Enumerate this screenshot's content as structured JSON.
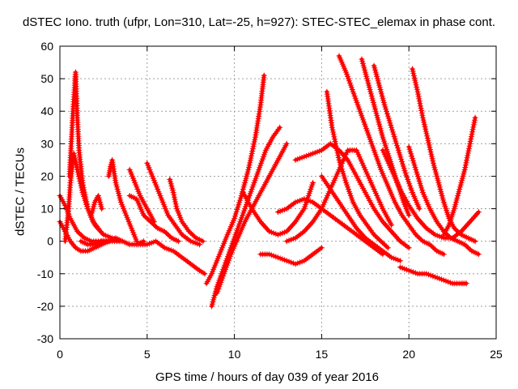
{
  "chart_data": {
    "type": "scatter",
    "title": "dSTEC Iono. truth (ufpr, Lon=310, Lat=-25, h=927): STEC-STEC_elemax in phase cont.",
    "xlabel": "GPS time / hours of day 039 of year 2016",
    "ylabel": "dSTEC  / TECUs",
    "xlim": [
      0,
      25
    ],
    "ylim": [
      -30,
      60
    ],
    "xticks": [
      "0",
      "5",
      "10",
      "15",
      "20",
      "25"
    ],
    "yticks": [
      "-30",
      "-20",
      "-10",
      "0",
      "10",
      "20",
      "30",
      "40",
      "50",
      "60"
    ],
    "grid": true,
    "marker": "+",
    "color": "#ff0000",
    "series": [
      {
        "x": [
          0.0,
          0.3,
          0.6,
          1.0,
          1.4,
          1.8,
          2.2,
          2.6,
          3.0,
          3.4
        ],
        "y": [
          14,
          11,
          7,
          3,
          1,
          0,
          0,
          0,
          0,
          0
        ]
      },
      {
        "x": [
          0.0,
          0.3,
          0.6,
          0.9,
          1.2,
          1.6,
          2.0,
          2.4,
          2.8
        ],
        "y": [
          6,
          3,
          0,
          -2,
          -3,
          -3,
          -2,
          -1,
          0
        ]
      },
      {
        "x": [
          0.3,
          0.4,
          0.5,
          0.6,
          0.8,
          1.0,
          1.3,
          1.6,
          1.9,
          2.2
        ],
        "y": [
          0,
          5,
          10,
          18,
          27,
          22,
          15,
          10,
          6,
          4
        ]
      },
      {
        "x": [
          0.55,
          0.65,
          0.75,
          0.85,
          0.9,
          1.0,
          1.1,
          1.3,
          1.6,
          2.0,
          2.5,
          3.0,
          3.5
        ],
        "y": [
          20,
          30,
          40,
          48,
          52,
          38,
          28,
          18,
          10,
          5,
          2,
          1,
          0
        ]
      },
      {
        "x": [
          1.2,
          1.6,
          2.0,
          2.4,
          2.8,
          3.2,
          3.6,
          4.0,
          4.4,
          4.8
        ],
        "y": [
          0,
          -1,
          -1,
          0,
          0,
          1,
          0,
          -1,
          -1,
          0
        ]
      },
      {
        "x": [
          1.8,
          2.0,
          2.2,
          2.4
        ],
        "y": [
          8,
          12,
          14,
          10
        ]
      },
      {
        "x": [
          2.8,
          2.9,
          3.0,
          3.2,
          3.5,
          3.8,
          4.1,
          4.4
        ],
        "y": [
          20,
          23,
          25,
          18,
          12,
          8,
          4,
          0
        ]
      },
      {
        "x": [
          4.0,
          4.3,
          4.6,
          5.0,
          5.4
        ],
        "y": [
          22,
          18,
          14,
          10,
          6
        ]
      },
      {
        "x": [
          4.0,
          4.4,
          4.8,
          5.2,
          5.6,
          6.0,
          6.4,
          6.8
        ],
        "y": [
          14,
          13,
          8,
          6,
          4,
          3,
          1,
          0
        ]
      },
      {
        "x": [
          5.0,
          5.3,
          5.6,
          5.9,
          6.2,
          6.6,
          7.0,
          7.5,
          8.0
        ],
        "y": [
          24,
          20,
          16,
          12,
          8,
          5,
          2,
          0,
          -1
        ]
      },
      {
        "x": [
          6.3,
          6.5,
          6.7,
          7.0,
          7.4,
          7.8,
          8.2
        ],
        "y": [
          19,
          15,
          10,
          6,
          3,
          1,
          0
        ]
      },
      {
        "x": [
          4.5,
          5.0,
          5.5,
          6.0,
          6.5,
          7.0,
          7.5,
          8.0,
          8.3
        ],
        "y": [
          -1,
          -1,
          0,
          -2,
          -3,
          -5,
          -7,
          -9,
          -10
        ]
      },
      {
        "x": [
          8.4,
          8.7,
          9.0,
          9.3,
          9.6,
          10.0,
          10.4,
          10.8,
          11.2,
          11.5,
          11.7
        ],
        "y": [
          -13,
          -10,
          -6,
          -2,
          2,
          7,
          14,
          22,
          32,
          42,
          51
        ]
      },
      {
        "x": [
          8.7,
          9.0,
          9.4,
          9.8,
          10.2,
          10.6,
          11.0,
          11.4,
          11.8,
          12.2,
          12.6
        ],
        "y": [
          -20,
          -14,
          -8,
          -2,
          4,
          10,
          16,
          22,
          28,
          32,
          35
        ]
      },
      {
        "x": [
          9.0,
          9.4,
          9.8,
          10.2,
          10.6,
          11.0,
          11.4,
          11.8,
          12.2,
          12.6,
          13.0
        ],
        "y": [
          -16,
          -10,
          -4,
          1,
          6,
          10,
          14,
          18,
          22,
          26,
          30
        ]
      },
      {
        "x": [
          10.5,
          11.0,
          11.5,
          12.0,
          12.5,
          13.0,
          13.5,
          14.0,
          14.5
        ],
        "y": [
          15,
          10,
          6,
          3,
          2,
          3,
          6,
          10,
          18
        ]
      },
      {
        "x": [
          11.5,
          12.0,
          12.5,
          13.0,
          13.5,
          14.0,
          14.5,
          15.0
        ],
        "y": [
          -4,
          -4,
          -5,
          -6,
          -7,
          -6,
          -4,
          -2
        ]
      },
      {
        "x": [
          13.5,
          14.0,
          14.5,
          15.0,
          15.5,
          16.0,
          16.5,
          17.0,
          17.5,
          18.0,
          18.5,
          19.0,
          19.5,
          20.0
        ],
        "y": [
          25,
          26,
          27,
          28,
          30,
          28,
          25,
          20,
          15,
          10,
          6,
          3,
          0,
          -2
        ]
      },
      {
        "x": [
          15.3,
          15.6,
          16.0,
          16.4,
          16.8,
          17.2,
          17.6,
          18.0,
          18.4,
          18.8
        ],
        "y": [
          46,
          35,
          25,
          18,
          12,
          8,
          5,
          2,
          0,
          -2
        ]
      },
      {
        "x": [
          16.0,
          16.4,
          16.8,
          17.2,
          17.6,
          18.0,
          18.4,
          18.8,
          19.2,
          19.6,
          20.0,
          20.4,
          20.8,
          21.2,
          21.6,
          22.0
        ],
        "y": [
          57,
          52,
          46,
          40,
          34,
          28,
          22,
          17,
          12,
          8,
          5,
          2,
          0,
          -1,
          -3,
          -4
        ]
      },
      {
        "x": [
          17.3,
          17.6,
          17.9,
          18.2,
          18.5,
          18.8,
          19.1,
          19.4,
          19.7,
          20.0
        ],
        "y": [
          56,
          50,
          44,
          38,
          32,
          27,
          22,
          17,
          12,
          8
        ]
      },
      {
        "x": [
          18.0,
          18.3,
          18.6,
          19.0,
          19.4,
          19.8,
          20.2,
          20.6
        ],
        "y": [
          54,
          48,
          42,
          35,
          28,
          21,
          15,
          10
        ]
      },
      {
        "x": [
          20.2,
          20.5,
          20.8,
          21.1,
          21.4,
          21.7,
          22.0,
          22.3,
          22.6,
          23.0,
          23.4,
          23.8
        ],
        "y": [
          53,
          46,
          38,
          31,
          24,
          18,
          12,
          7,
          4,
          2,
          1,
          0
        ]
      },
      {
        "x": [
          20.0,
          20.4,
          20.8,
          21.2,
          21.6,
          22.0,
          22.4,
          22.8,
          23.2,
          23.6,
          24.0
        ],
        "y": [
          29,
          22,
          15,
          10,
          6,
          3,
          1,
          0,
          -1,
          -3,
          -4
        ]
      },
      {
        "x": [
          22.0,
          22.3,
          22.6,
          22.9,
          23.2,
          23.5,
          23.8
        ],
        "y": [
          2,
          5,
          10,
          16,
          22,
          30,
          38
        ]
      },
      {
        "x": [
          19.5,
          20.0,
          20.5,
          21.0,
          21.5,
          22.0,
          22.5,
          23.0,
          23.3
        ],
        "y": [
          -8,
          -9,
          -10,
          -10,
          -11,
          -12,
          -13,
          -13,
          -13
        ]
      },
      {
        "x": [
          12.5,
          13.0,
          13.5,
          14.0,
          14.5,
          15.0,
          15.5,
          16.0,
          16.5,
          17.0,
          17.5,
          18.0,
          18.5
        ],
        "y": [
          9,
          10,
          12,
          13,
          12,
          10,
          8,
          6,
          4,
          2,
          0,
          -2,
          -4
        ]
      },
      {
        "x": [
          13.0,
          13.5,
          14.0,
          14.5,
          15.0,
          15.5,
          16.0,
          16.5,
          17.0,
          17.5,
          18.0,
          18.5,
          19.0
        ],
        "y": [
          0,
          1,
          3,
          6,
          10,
          16,
          22,
          28,
          28,
          22,
          16,
          10,
          5
        ]
      },
      {
        "x": [
          18.5,
          19.0,
          19.5,
          20.0,
          20.5,
          21.0,
          21.5,
          22.0,
          22.5,
          23.0,
          23.5,
          24.0
        ],
        "y": [
          28,
          22,
          16,
          11,
          7,
          4,
          2,
          1,
          1,
          3,
          6,
          9
        ]
      },
      {
        "x": [
          15.0,
          15.5,
          16.0,
          16.5,
          17.0,
          17.5,
          18.0,
          18.5,
          19.0,
          19.5
        ],
        "y": [
          20,
          16,
          12,
          8,
          4,
          1,
          -1,
          -3,
          -5,
          -6
        ]
      }
    ]
  }
}
